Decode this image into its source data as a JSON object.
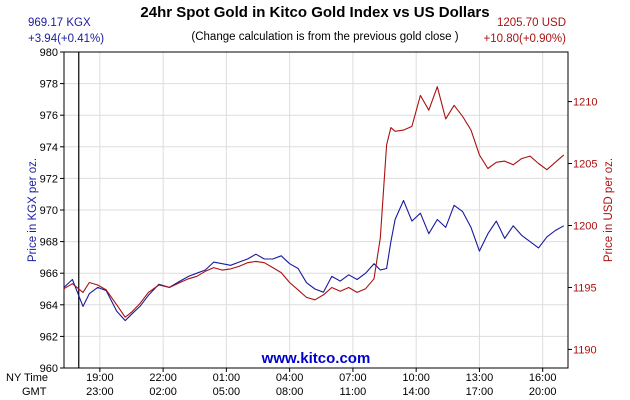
{
  "chart_data": {
    "type": "line",
    "title": "24hr Spot Gold in Kitco Gold Index vs US Dollars",
    "subtitle": "(Change calculation is from the previous gold close )",
    "watermark": "www.kitco.com",
    "left_readout": {
      "value": "969.17 KGX",
      "change": "+3.94(+0.41%)"
    },
    "right_readout": {
      "value": "1205.70 USD",
      "change": "+10.80(+0.90%)"
    },
    "ylabel_left": "Price in KGX per oz.",
    "ylabel_right": "Price in USD per oz.",
    "ylim_left": [
      960,
      980
    ],
    "ylim_right": [
      1188.5,
      1214
    ],
    "yticks_left": [
      960,
      962,
      964,
      966,
      968,
      970,
      972,
      974,
      976,
      978,
      980
    ],
    "yticks_right": [
      1190,
      1195,
      1200,
      1205,
      1210
    ],
    "x_row_labels": [
      "NY Time",
      "GMT"
    ],
    "x_ticks": [
      {
        "hour": 1,
        "ny": "19:00",
        "gmt": "23:00"
      },
      {
        "hour": 4,
        "ny": "22:00",
        "gmt": "02:00"
      },
      {
        "hour": 7,
        "ny": "01:00",
        "gmt": "05:00"
      },
      {
        "hour": 10,
        "ny": "04:00",
        "gmt": "08:00"
      },
      {
        "hour": 13,
        "ny": "07:00",
        "gmt": "11:00"
      },
      {
        "hour": 16,
        "ny": "10:00",
        "gmt": "14:00"
      },
      {
        "hour": 19,
        "ny": "13:00",
        "gmt": "17:00"
      },
      {
        "hour": 22,
        "ny": "16:00",
        "gmt": "20:00"
      }
    ],
    "xlim_hours": [
      -0.7,
      23.2
    ],
    "prev_close_hour": 0,
    "grid": true,
    "series": [
      {
        "name": "KGX",
        "axis": "left",
        "color": "#1a1aa0",
        "x": [
          -0.7,
          -0.3,
          0.2,
          0.5,
          0.9,
          1.3,
          1.8,
          2.2,
          2.5,
          2.9,
          3.3,
          3.8,
          4.3,
          4.8,
          5.2,
          5.6,
          6.0,
          6.4,
          6.8,
          7.2,
          7.6,
          8.0,
          8.4,
          8.8,
          9.2,
          9.6,
          10.0,
          10.4,
          10.8,
          11.2,
          11.6,
          12.0,
          12.4,
          12.8,
          13.2,
          13.6,
          14.0,
          14.3,
          14.6,
          14.8,
          15.0,
          15.4,
          15.8,
          16.2,
          16.6,
          17.0,
          17.4,
          17.8,
          18.2,
          18.6,
          19.0,
          19.4,
          19.8,
          20.2,
          20.6,
          21.0,
          21.4,
          21.8,
          22.2,
          22.6,
          23.0
        ],
        "y": [
          965.1,
          965.6,
          963.9,
          964.7,
          965.1,
          964.9,
          963.6,
          963.0,
          963.4,
          963.9,
          964.6,
          965.3,
          965.1,
          965.5,
          965.8,
          966.0,
          966.2,
          966.7,
          966.6,
          966.5,
          966.7,
          966.9,
          967.2,
          966.9,
          966.9,
          967.1,
          966.6,
          966.3,
          965.4,
          965.0,
          964.8,
          965.8,
          965.5,
          965.9,
          965.6,
          966.0,
          966.6,
          966.2,
          966.3,
          968.0,
          969.4,
          970.6,
          969.3,
          969.8,
          968.5,
          969.4,
          968.9,
          970.3,
          969.9,
          968.9,
          967.4,
          968.5,
          969.3,
          968.2,
          969.0,
          968.4,
          968.0,
          967.6,
          968.3,
          968.7,
          969.0
        ]
      },
      {
        "name": "USD",
        "axis": "right",
        "color": "#aa1111",
        "x": [
          -0.7,
          -0.3,
          0.2,
          0.5,
          0.9,
          1.3,
          1.8,
          2.2,
          2.5,
          2.9,
          3.3,
          3.8,
          4.3,
          4.8,
          5.2,
          5.6,
          6.0,
          6.4,
          6.8,
          7.2,
          7.6,
          8.0,
          8.4,
          8.8,
          9.2,
          9.6,
          10.0,
          10.4,
          10.8,
          11.2,
          11.6,
          12.0,
          12.4,
          12.8,
          13.2,
          13.6,
          14.0,
          14.3,
          14.6,
          14.8,
          15.0,
          15.4,
          15.8,
          16.2,
          16.6,
          17.0,
          17.4,
          17.8,
          18.2,
          18.6,
          19.0,
          19.4,
          19.8,
          20.2,
          20.6,
          21.0,
          21.4,
          21.8,
          22.2,
          22.6,
          23.0
        ],
        "y": [
          1194.9,
          1195.3,
          1194.6,
          1195.4,
          1195.2,
          1194.8,
          1193.6,
          1192.6,
          1193.0,
          1193.7,
          1194.6,
          1195.2,
          1195.0,
          1195.4,
          1195.7,
          1195.9,
          1196.3,
          1196.6,
          1196.4,
          1196.5,
          1196.7,
          1197.0,
          1197.1,
          1197.0,
          1196.6,
          1196.2,
          1195.4,
          1194.8,
          1194.2,
          1194.0,
          1194.4,
          1195.0,
          1194.7,
          1195.0,
          1194.6,
          1194.9,
          1195.7,
          1199.0,
          1206.5,
          1207.9,
          1207.6,
          1207.7,
          1208.0,
          1210.5,
          1209.3,
          1211.2,
          1208.6,
          1209.7,
          1208.8,
          1207.7,
          1205.7,
          1204.6,
          1205.1,
          1205.2,
          1204.9,
          1205.4,
          1205.6,
          1205.0,
          1204.5,
          1205.1,
          1205.7
        ]
      }
    ]
  }
}
